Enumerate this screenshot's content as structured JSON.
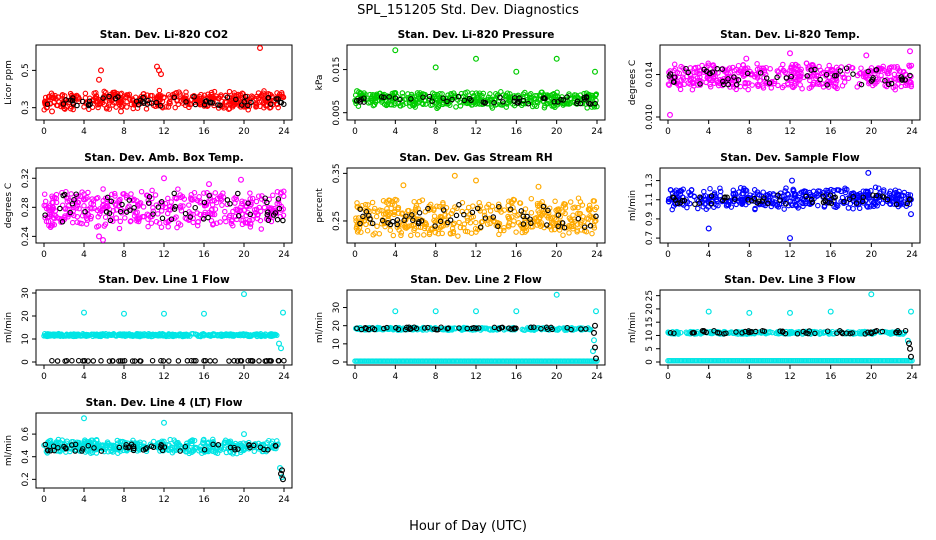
{
  "figure": {
    "title": "SPL_151205  Std. Dev. Diagnostics",
    "xlabel": "Hour of Day (UTC)"
  },
  "chart_data": [
    {
      "type": "scatter",
      "title": "Stan. Dev. Li-820 CO2",
      "ylabel": "Licor ppm",
      "xlim": [
        0,
        24
      ],
      "ylim": [
        0.25,
        0.62
      ],
      "yticks": [
        "0.3",
        "0.5"
      ],
      "ytick_values": [
        0.3,
        0.5
      ],
      "xticks": [
        "0",
        "4",
        "8",
        "12",
        "16",
        "20",
        "24"
      ],
      "series": [
        {
          "color": "#ff0000",
          "band": [
            0.3,
            0.38
          ],
          "cloud": true,
          "outliers": [
            [
              5.5,
              0.45
            ],
            [
              5.7,
              0.5
            ],
            [
              11.3,
              0.52
            ],
            [
              11.5,
              0.5
            ],
            [
              11.7,
              0.48
            ],
            [
              21.6,
              0.62
            ],
            [
              7.7,
              0.28
            ],
            [
              0.8,
              0.28
            ]
          ]
        },
        {
          "color": "#000000",
          "band": [
            0.31,
            0.36
          ],
          "cloud": false
        }
      ]
    },
    {
      "type": "scatter",
      "title": "Stan. Dev. Li-820 Pressure",
      "ylabel": "kPa",
      "xlim": [
        0,
        24
      ],
      "ylim": [
        0.004,
        0.02
      ],
      "yticks": [
        "0.005",
        "0.015"
      ],
      "ytick_values": [
        0.005,
        0.015
      ],
      "xticks": [
        "0",
        "4",
        "8",
        "12",
        "16",
        "20",
        "24"
      ],
      "series": [
        {
          "color": "#00cc00",
          "band": [
            0.0065,
            0.0095
          ],
          "cloud": true,
          "outliers": [
            [
              4.0,
              0.0195
            ],
            [
              8.0,
              0.0155
            ],
            [
              12.0,
              0.0175
            ],
            [
              16.0,
              0.0145
            ],
            [
              20.0,
              0.0175
            ],
            [
              23.8,
              0.0145
            ],
            [
              0.2,
              0.01
            ]
          ]
        },
        {
          "color": "#000000",
          "band": [
            0.007,
            0.0088
          ],
          "cloud": false
        }
      ]
    },
    {
      "type": "scatter",
      "title": "Stan. Dev. Li-820 Temp.",
      "ylabel": "degrees C",
      "xlim": [
        0,
        24
      ],
      "ylim": [
        0.01,
        0.0165
      ],
      "yticks": [
        "0.010",
        "0.014"
      ],
      "ytick_values": [
        0.01,
        0.014
      ],
      "xticks": [
        "0",
        "4",
        "8",
        "12",
        "16",
        "20",
        "24"
      ],
      "series": [
        {
          "color": "#ff00ff",
          "band": [
            0.0128,
            0.0148
          ],
          "cloud": true,
          "outliers": [
            [
              0.2,
              0.0102
            ],
            [
              12.0,
              0.016
            ],
            [
              23.8,
              0.0162
            ],
            [
              19.5,
              0.0158
            ],
            [
              7.7,
              0.0155
            ]
          ]
        },
        {
          "color": "#000000",
          "band": [
            0.013,
            0.0146
          ],
          "cloud": false
        }
      ]
    },
    {
      "type": "scatter",
      "title": "Stan. Dev. Amb. Box Temp.",
      "ylabel": "degrees C",
      "xlim": [
        0,
        24
      ],
      "ylim": [
        0.235,
        0.33
      ],
      "yticks": [
        "0.24",
        "0.28",
        "0.32"
      ],
      "ytick_values": [
        0.24,
        0.28,
        0.32
      ],
      "xticks": [
        "0",
        "4",
        "8",
        "12",
        "16",
        "20",
        "24"
      ],
      "series": [
        {
          "color": "#ff00ff",
          "band": [
            0.255,
            0.3
          ],
          "cloud": true,
          "outliers": [
            [
              5.5,
              0.24
            ],
            [
              5.9,
              0.235
            ],
            [
              12.0,
              0.32
            ],
            [
              19.7,
              0.318
            ],
            [
              16.5,
              0.312
            ]
          ]
        },
        {
          "color": "#000000",
          "band": [
            0.26,
            0.3
          ],
          "cloud": false
        }
      ]
    },
    {
      "type": "scatter",
      "title": "Stan. Dev. Gas Stream RH",
      "ylabel": "percent",
      "xlim": [
        0,
        24
      ],
      "ylim": [
        0.21,
        0.355
      ],
      "yticks": [
        "0.25",
        "0.35"
      ],
      "ytick_values": [
        0.25,
        0.35
      ],
      "xticks": [
        "0",
        "4",
        "8",
        "12",
        "16",
        "20",
        "24"
      ],
      "series": [
        {
          "color": "#ffaa00",
          "band": [
            0.225,
            0.29
          ],
          "cloud": true,
          "outliers": [
            [
              9.9,
              0.345
            ],
            [
              12.0,
              0.335
            ],
            [
              4.8,
              0.325
            ],
            [
              18.2,
              0.322
            ]
          ]
        },
        {
          "color": "#000000",
          "band": [
            0.235,
            0.285
          ],
          "cloud": false
        }
      ]
    },
    {
      "type": "scatter",
      "title": "Stan. Dev. Sample Flow",
      "ylabel": "ml/min",
      "xlim": [
        0,
        24
      ],
      "ylim": [
        0.68,
        1.4
      ],
      "yticks": [
        "0.7",
        "0.9",
        "1.1",
        "1.3"
      ],
      "ytick_values": [
        0.7,
        0.9,
        1.1,
        1.3
      ],
      "xticks": [
        "0",
        "4",
        "8",
        "12",
        "16",
        "20",
        "24"
      ],
      "series": [
        {
          "color": "#0000ff",
          "band": [
            1.02,
            1.2
          ],
          "cloud": true,
          "outliers": [
            [
              12.0,
              0.7
            ],
            [
              4.0,
              0.8
            ],
            [
              19.7,
              1.38
            ],
            [
              12.2,
              1.3
            ],
            [
              23.9,
              0.95
            ]
          ]
        },
        {
          "color": "#000000",
          "band": [
            1.05,
            1.15
          ],
          "cloud": false
        }
      ]
    },
    {
      "type": "scatter",
      "title": "Stan. Dev. Line 1 Flow",
      "ylabel": "ml/min",
      "xlim": [
        0,
        24
      ],
      "ylim": [
        0,
        30
      ],
      "yticks": [
        "0",
        "10",
        "20",
        "30"
      ],
      "ytick_values": [
        0,
        10,
        20,
        30
      ],
      "xticks": [
        "0",
        "4",
        "8",
        "12",
        "16",
        "20",
        "24"
      ],
      "series": [
        {
          "color": "#00e5e5",
          "band": [
            11.2,
            12.2
          ],
          "cloud": true,
          "end": 23.3,
          "outliers": [
            [
              4.0,
              21.5
            ],
            [
              8.0,
              21
            ],
            [
              12.0,
              21
            ],
            [
              16.0,
              21
            ],
            [
              20.0,
              29.5
            ],
            [
              23.9,
              21.5
            ],
            [
              23.5,
              8
            ],
            [
              23.7,
              6
            ]
          ]
        },
        {
          "color": "#000000",
          "band": [
            0.4,
            0.6
          ],
          "cloud": false
        }
      ]
    },
    {
      "type": "scatter",
      "title": "Stan. Dev. Line 2 Flow",
      "ylabel": "ml/min",
      "xlim": [
        0,
        24
      ],
      "ylim": [
        0,
        38
      ],
      "yticks": [
        "0",
        "10",
        "20",
        "30"
      ],
      "ytick_values": [
        0,
        10,
        20,
        30
      ],
      "xticks": [
        "0",
        "4",
        "8",
        "12",
        "16",
        "20",
        "24"
      ],
      "series": [
        {
          "color": "#00e5e5",
          "band": [
            17.5,
            19
          ],
          "cloud": false,
          "end": 23.4,
          "floor": 0.5,
          "outliers": [
            [
              4.0,
              28
            ],
            [
              8.0,
              28
            ],
            [
              12.0,
              28
            ],
            [
              16.0,
              28
            ],
            [
              20.0,
              37
            ],
            [
              23.9,
              28
            ],
            [
              23.7,
              12
            ],
            [
              23.6,
              6
            ]
          ]
        },
        {
          "color": "#000000",
          "band": [
            17.8,
            19.2
          ],
          "cloud": false,
          "end": 23.5,
          "outliers": [
            [
              23.8,
              20
            ],
            [
              23.7,
              16
            ],
            [
              23.9,
              2
            ],
            [
              23.8,
              8
            ]
          ]
        }
      ]
    },
    {
      "type": "scatter",
      "title": "Stan. Dev. Line 3 Flow",
      "ylabel": "ml/min",
      "xlim": [
        0,
        24
      ],
      "ylim": [
        0,
        26
      ],
      "yticks": [
        "0",
        "5",
        "10",
        "15",
        "20",
        "25"
      ],
      "ytick_values": [
        0,
        5,
        10,
        15,
        20,
        25
      ],
      "xticks": [
        "0",
        "4",
        "8",
        "12",
        "16",
        "20",
        "24"
      ],
      "series": [
        {
          "color": "#00e5e5",
          "band": [
            10.5,
            11.5
          ],
          "cloud": false,
          "end": 23.3,
          "floor": 0.5,
          "outliers": [
            [
              4.0,
              19
            ],
            [
              8.0,
              18.5
            ],
            [
              12.0,
              18.5
            ],
            [
              16.0,
              19
            ],
            [
              20.0,
              25.5
            ],
            [
              23.9,
              19
            ],
            [
              23.6,
              8
            ]
          ]
        },
        {
          "color": "#000000",
          "band": [
            10.6,
            11.8
          ],
          "cloud": false,
          "end": 23.4,
          "outliers": [
            [
              23.8,
              5
            ],
            [
              23.9,
              2
            ],
            [
              23.7,
              7
            ]
          ]
        }
      ]
    },
    {
      "type": "scatter",
      "title": "Stan. Dev. Line 4 (LT) Flow",
      "ylabel": "ml/min",
      "xlim": [
        0,
        24
      ],
      "ylim": [
        0.15,
        0.76
      ],
      "yticks": [
        "0.2",
        "0.4",
        "0.6"
      ],
      "ytick_values": [
        0.2,
        0.4,
        0.6
      ],
      "xticks": [
        "0",
        "4",
        "8",
        "12",
        "16",
        "20",
        "24"
      ],
      "series": [
        {
          "color": "#00e5e5",
          "band": [
            0.44,
            0.54
          ],
          "cloud": true,
          "end": 23.5,
          "outliers": [
            [
              4.0,
              0.74
            ],
            [
              12.0,
              0.7
            ],
            [
              20.0,
              0.6
            ],
            [
              23.8,
              0.22
            ],
            [
              23.6,
              0.3
            ]
          ]
        },
        {
          "color": "#000000",
          "band": [
            0.45,
            0.51
          ],
          "cloud": false,
          "end": 23.5,
          "outliers": [
            [
              23.8,
              0.28
            ],
            [
              23.9,
              0.2
            ],
            [
              23.7,
              0.25
            ]
          ]
        }
      ]
    }
  ]
}
